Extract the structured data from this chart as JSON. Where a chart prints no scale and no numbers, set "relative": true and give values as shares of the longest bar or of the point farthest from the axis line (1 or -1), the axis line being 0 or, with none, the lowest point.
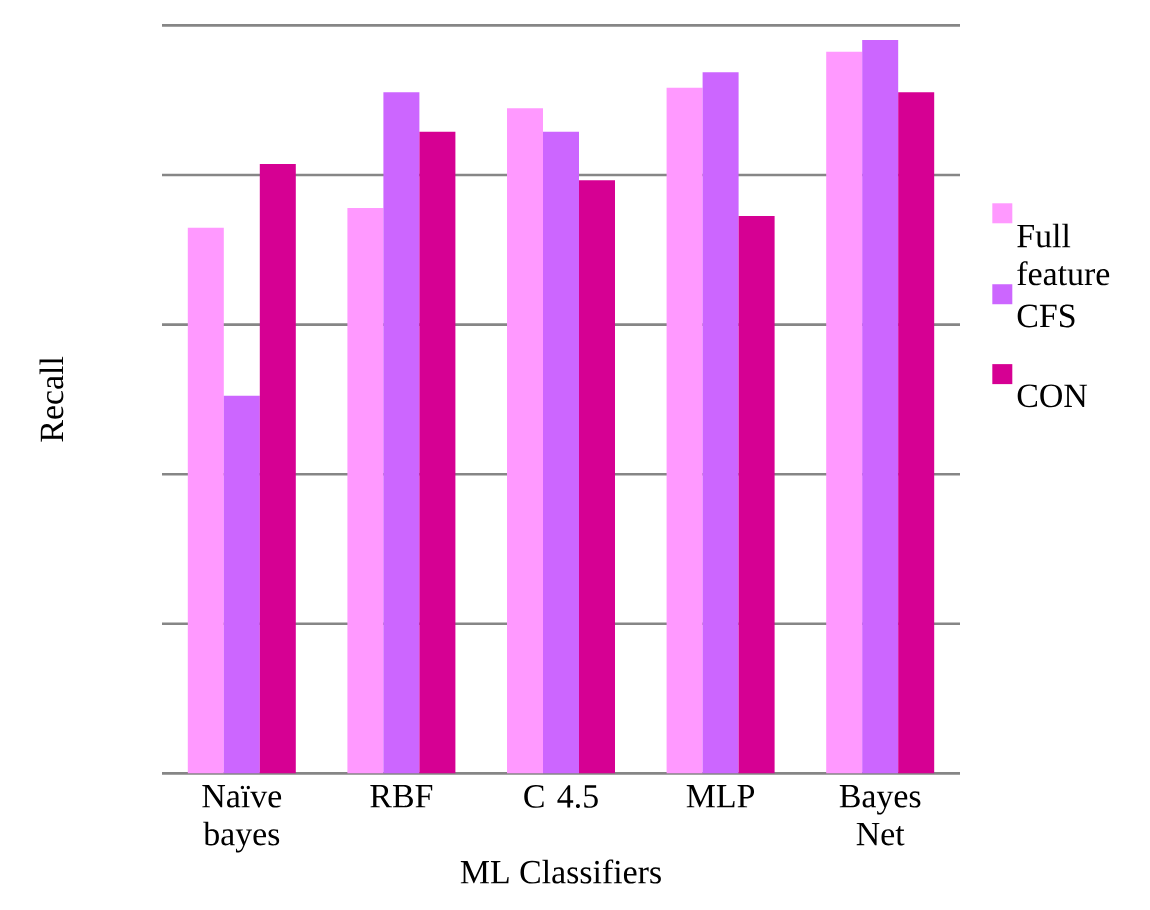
{
  "chart_data": {
    "type": "bar",
    "xlabel": "ML Classifiers",
    "ylabel": "Recall",
    "relative": true,
    "grid": "y",
    "legend": "right",
    "categories": [
      "Naïve bayes",
      "RBF",
      "C 4.5",
      "MLP",
      "Bayes Net"
    ],
    "series": [
      {
        "name": "Full feature",
        "color": "#ff99ff",
        "values": [
          0.744,
          0.771,
          0.907,
          0.935,
          0.984
        ]
      },
      {
        "name": "CFS",
        "color": "#cc66ff",
        "values": [
          0.515,
          0.929,
          0.875,
          0.956,
          1
        ]
      },
      {
        "name": "CON",
        "color": "#d60093",
        "values": [
          0.831,
          0.875,
          0.809,
          0.76,
          0.929
        ]
      }
    ]
  }
}
